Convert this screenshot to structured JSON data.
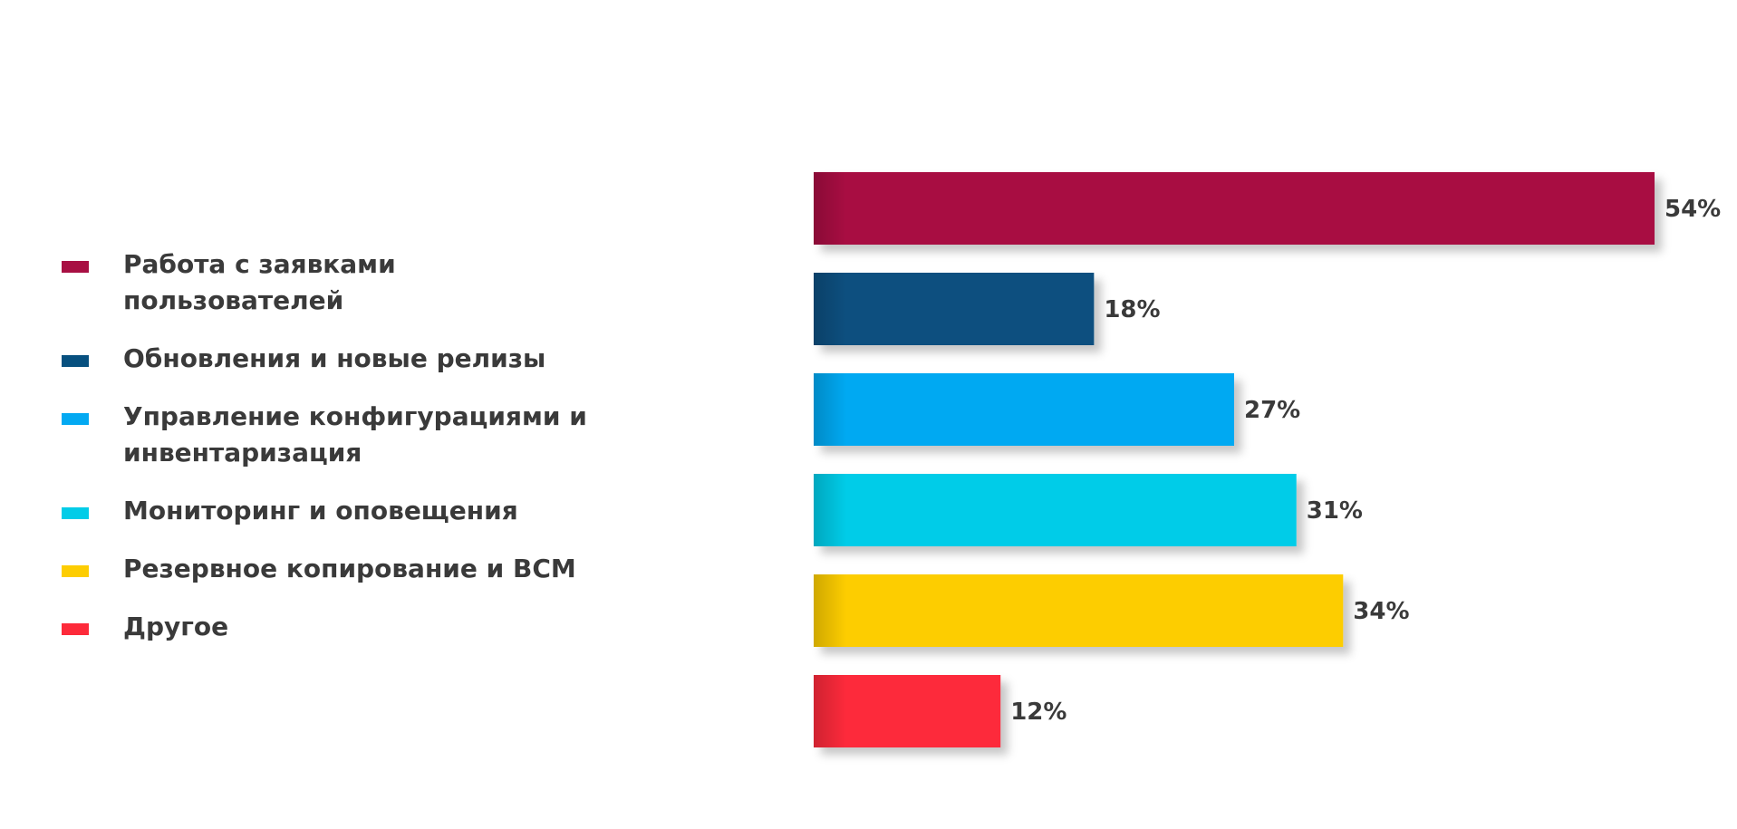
{
  "chart_data": {
    "type": "bar",
    "orientation": "horizontal",
    "categories": [
      "Работа с заявками пользователей",
      "Обновления и новые релизы",
      "Управление конфигурациями и инвентаризация",
      "Мониторинг и оповещения",
      "Резервное копирование и BCM",
      "Другое"
    ],
    "values": [
      54,
      18,
      27,
      31,
      34,
      12
    ],
    "value_labels": [
      "54%",
      "18%",
      "27%",
      "31%",
      "34%",
      "12%"
    ],
    "colors": [
      "#A80F43",
      "#07507F",
      "#03A9F2",
      "#02CCE8",
      "#FDCD02",
      "#FD2A3A"
    ],
    "xlim": [
      0,
      54
    ],
    "legend_position": "left",
    "grid": false
  },
  "legend": {
    "items": [
      {
        "label": "Работа с заявками пользователей",
        "color": "#A80F43"
      },
      {
        "label": "Обновления и новые релизы",
        "color": "#07507F"
      },
      {
        "label": "Управление конфигурациями и",
        "label_line2": "инвентаризация",
        "color": "#03A9F2"
      },
      {
        "label": "Мониторинг и оповещения",
        "color": "#02CCE8"
      },
      {
        "label": "Резервное копирование и BCM",
        "color": "#FDCD02"
      },
      {
        "label": "Другое",
        "color": "#FD2A3A"
      }
    ]
  }
}
